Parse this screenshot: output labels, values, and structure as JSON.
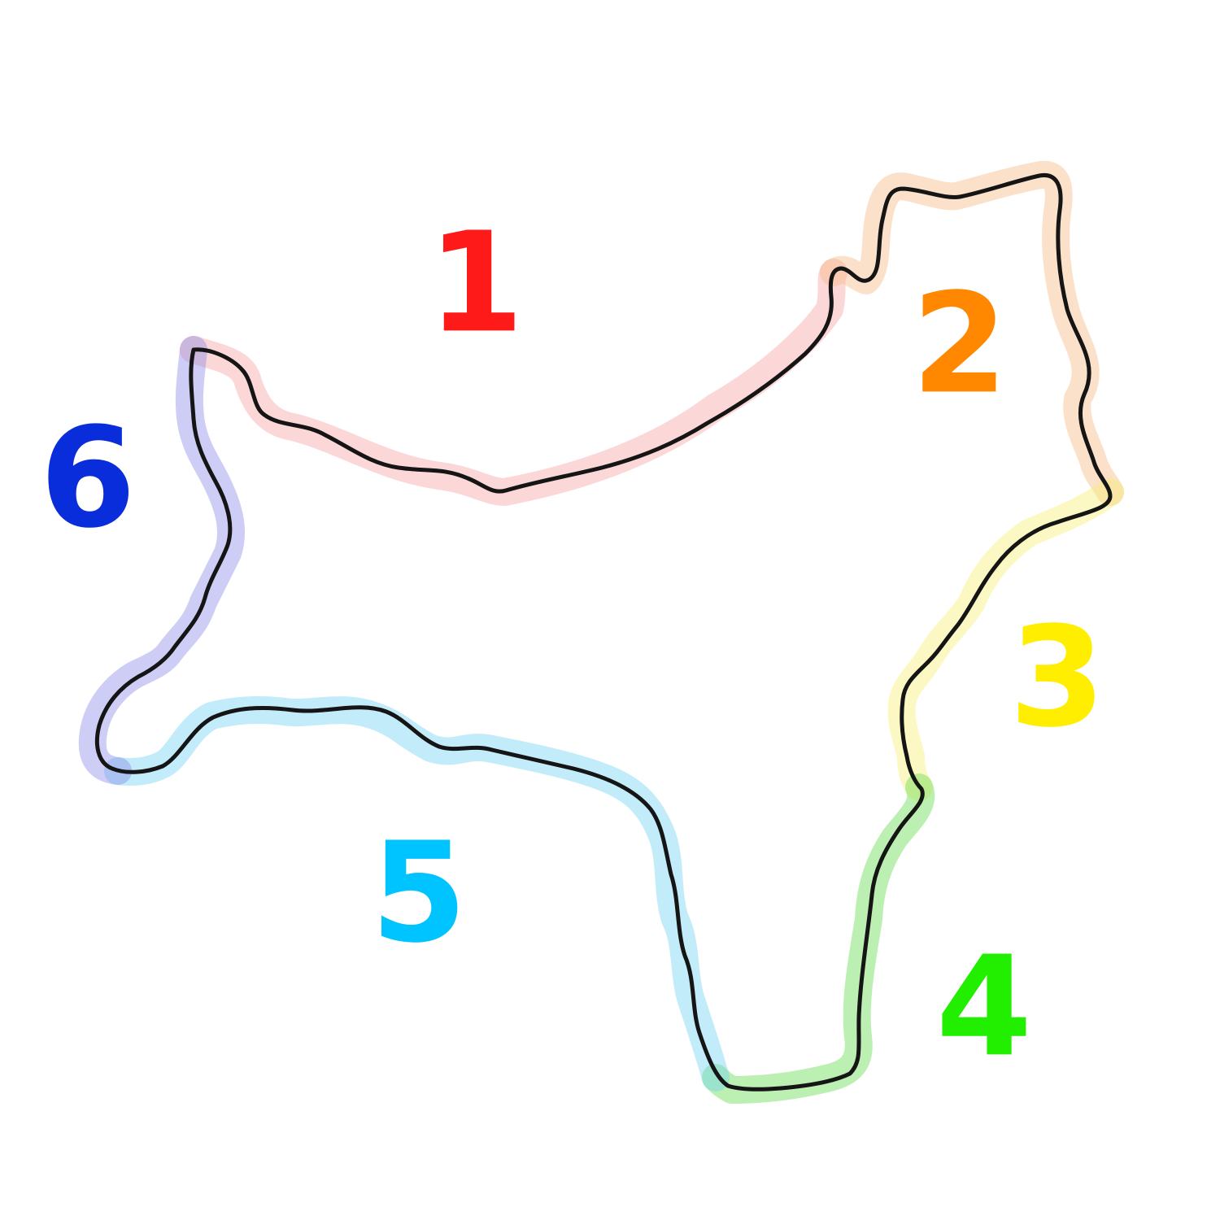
{
  "segments": [
    {
      "id": "1",
      "label": "1",
      "color": "#ff1a1a",
      "highlight": "#f7a0a0"
    },
    {
      "id": "2",
      "label": "2",
      "color": "#ff8800",
      "highlight": "#f8b880"
    },
    {
      "id": "3",
      "label": "3",
      "color": "#ffee00",
      "highlight": "#f8ee70"
    },
    {
      "id": "4",
      "label": "4",
      "color": "#22ee00",
      "highlight": "#5fdc48"
    },
    {
      "id": "5",
      "label": "5",
      "color": "#00c4ff",
      "highlight": "#70d2f4"
    },
    {
      "id": "6",
      "label": "6",
      "color": "#0a2ddc",
      "highlight": "#8888e6"
    }
  ]
}
